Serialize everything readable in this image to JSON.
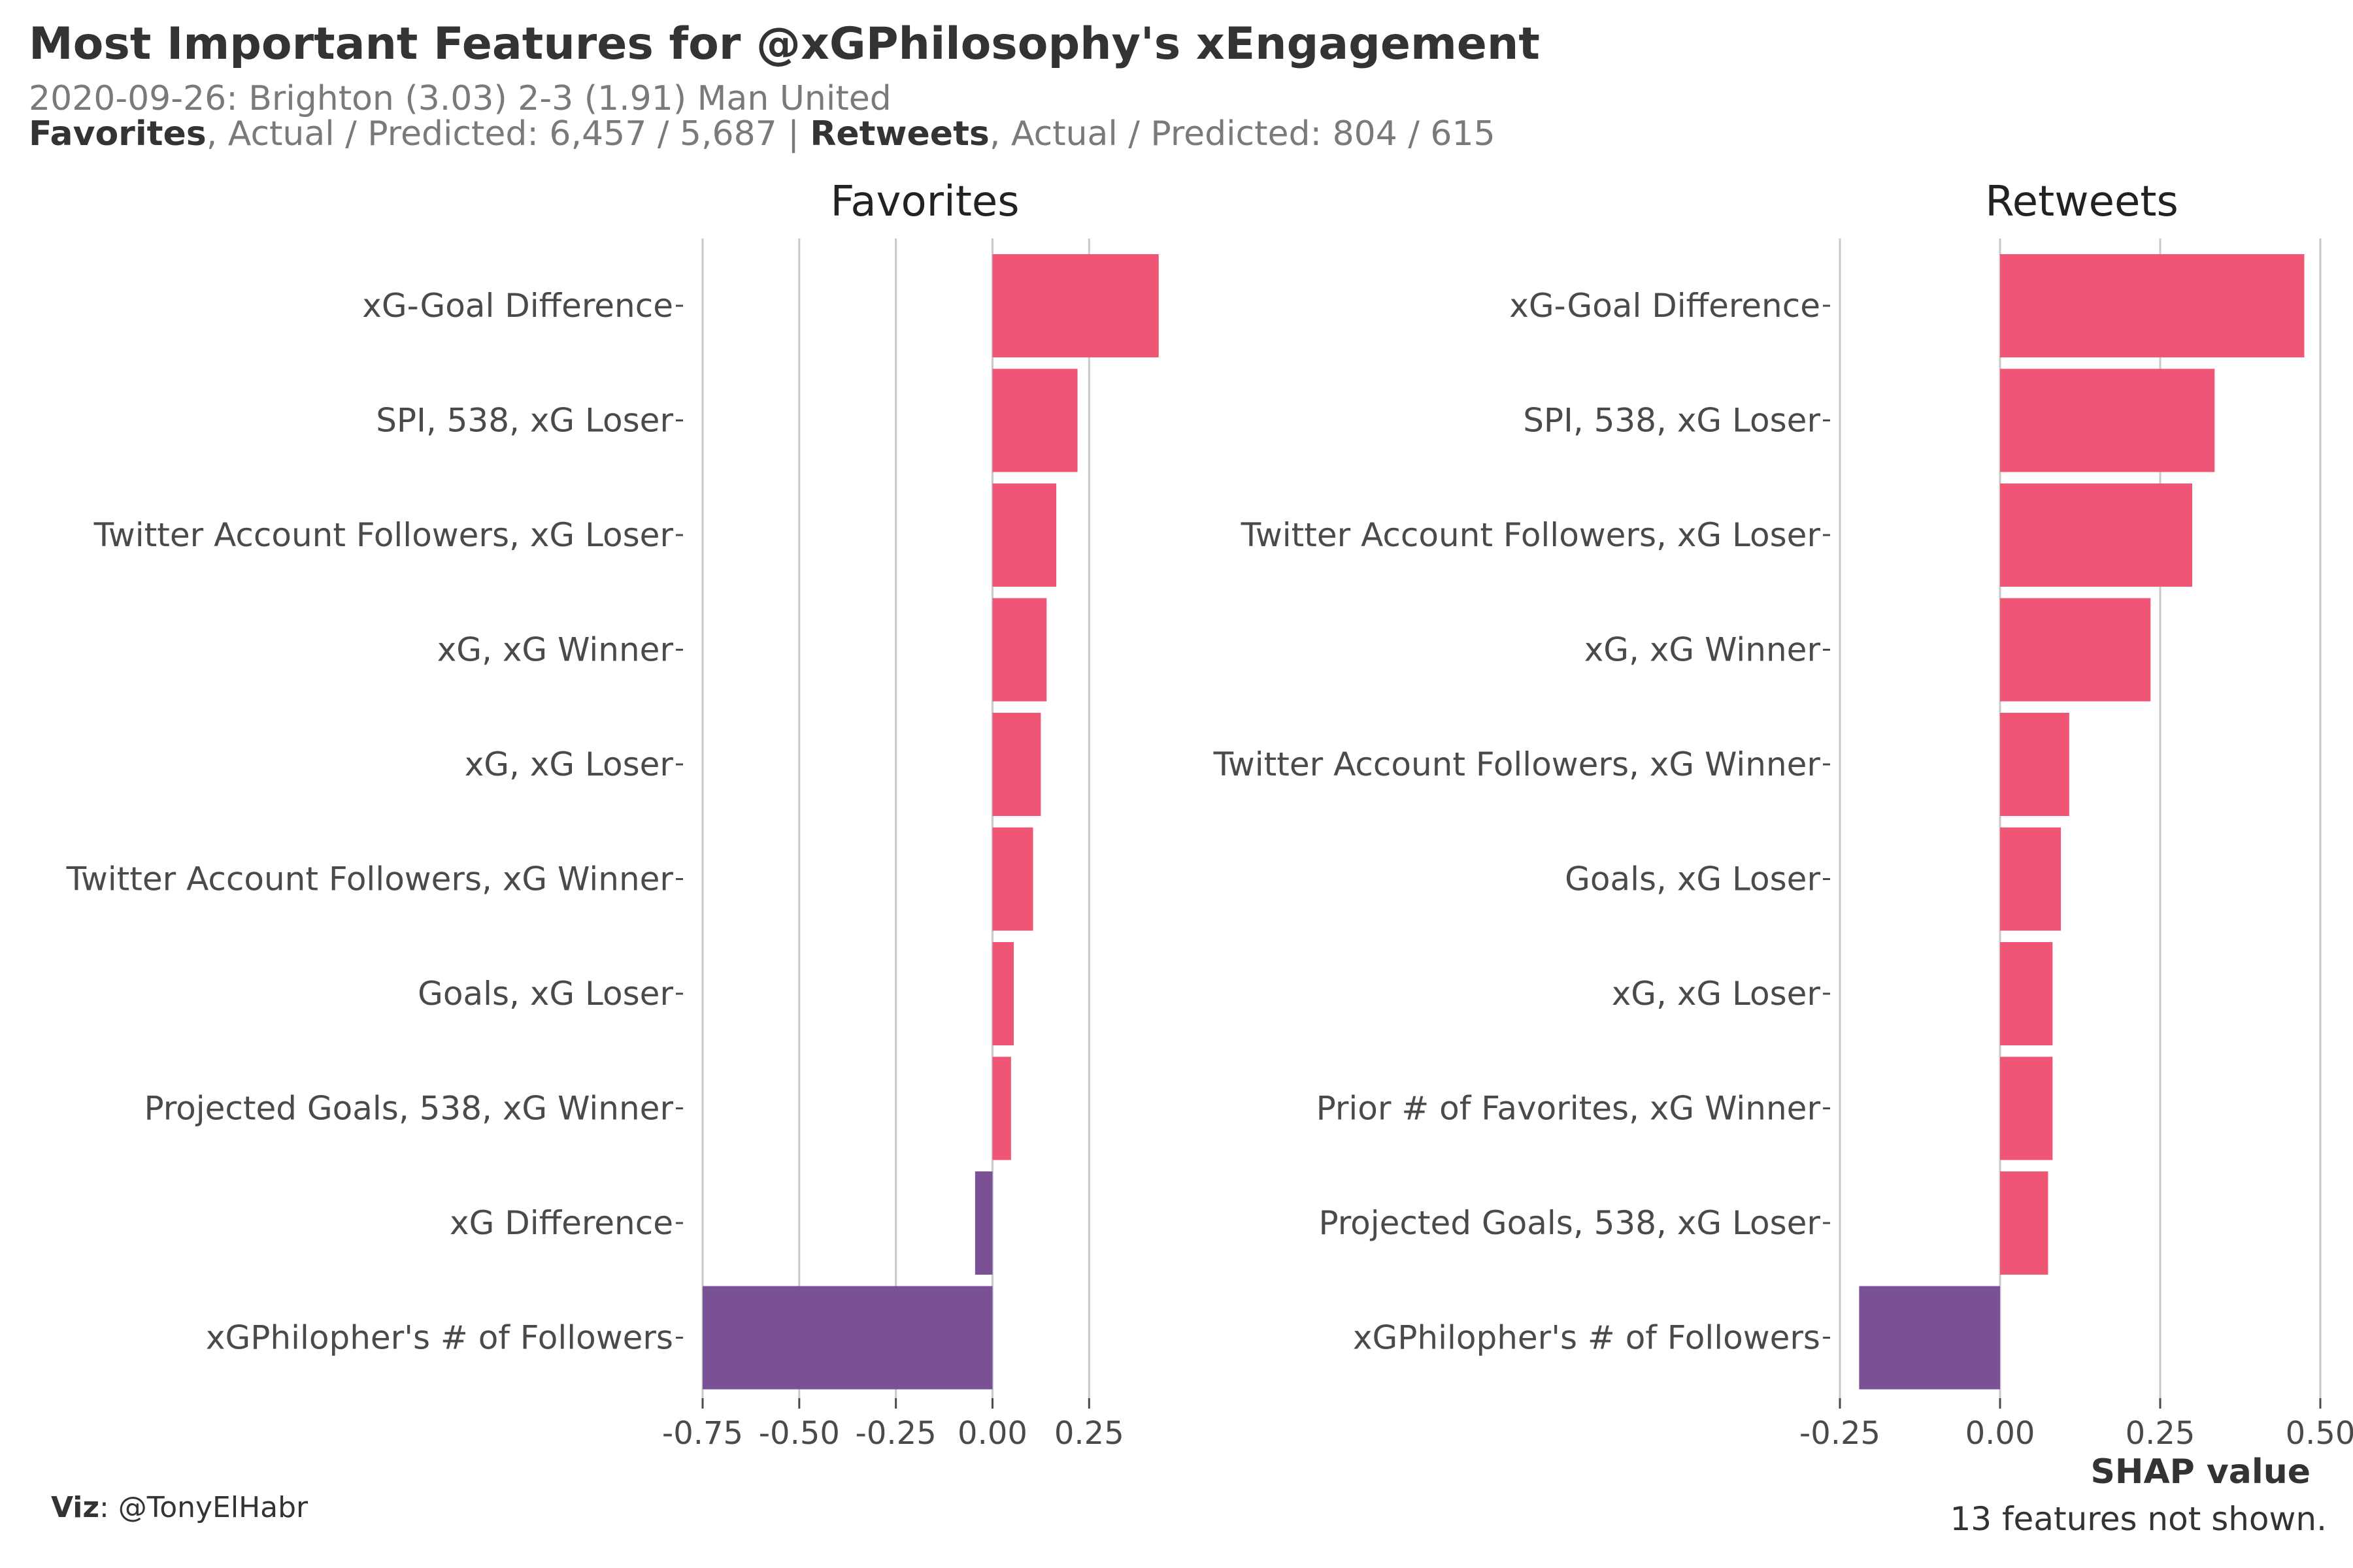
{
  "title": "Most Important Features for @xGPhilosophy's xEngagement",
  "subtitle": {
    "line1": "2020-09-26: Brighton (3.03) 2-3 (1.91) Man United",
    "line2_parts": [
      {
        "text": "Favorites",
        "strong": true
      },
      {
        "text": ", Actual / Predicted: 6,457 / 5,687 | ",
        "strong": false
      },
      {
        "text": "Retweets",
        "strong": true
      },
      {
        "text": ", Actual / Predicted: 804 / 615",
        "strong": false
      }
    ]
  },
  "x_axis_title": "SHAP value",
  "note": "13 features not shown.",
  "caption": {
    "label": "Viz",
    "text": ": @TonyElHabr"
  },
  "colors": {
    "positive": "#ef5675",
    "negative": "#7a5195"
  },
  "chart_data": [
    {
      "type": "bar",
      "orientation": "horizontal",
      "title": "Favorites",
      "xlim": [
        -0.75,
        0.4
      ],
      "xticks": [
        -0.75,
        -0.5,
        -0.25,
        0.0,
        0.25
      ],
      "xtick_labels": [
        "-0.75",
        "-0.50",
        "-0.25",
        "0.00",
        "0.25"
      ],
      "categories": [
        "xG-Goal Difference",
        "SPI, 538, xG Loser",
        "Twitter Account Followers, xG Loser",
        "xG, xG Winner",
        "xG, xG Loser",
        "Twitter Account Followers, xG Winner",
        "Goals, xG Loser",
        "Projected Goals, 538, xG Winner",
        "xG Difference",
        "xGPhilopher's # of Followers"
      ],
      "values": [
        0.43,
        0.22,
        0.165,
        0.14,
        0.125,
        0.105,
        0.055,
        0.048,
        -0.045,
        -0.75
      ]
    },
    {
      "type": "bar",
      "orientation": "horizontal",
      "title": "Retweets",
      "xlim": [
        -0.25,
        0.5
      ],
      "xticks": [
        -0.25,
        0.0,
        0.25,
        0.5
      ],
      "xtick_labels": [
        "-0.25",
        "0.00",
        "0.25",
        "0.50"
      ],
      "categories": [
        "xG-Goal Difference",
        "SPI, 538, xG Loser",
        "Twitter Account Followers, xG Loser",
        "xG, xG Winner",
        "Twitter Account Followers, xG Winner",
        "Goals, xG Loser",
        "xG, xG Loser",
        "Prior # of Favorites, xG Winner",
        "Projected Goals, 538, xG Loser",
        "xGPhilopher's # of Followers"
      ],
      "values": [
        0.475,
        0.335,
        0.3,
        0.235,
        0.108,
        0.095,
        0.082,
        0.082,
        0.075,
        -0.22
      ]
    }
  ]
}
